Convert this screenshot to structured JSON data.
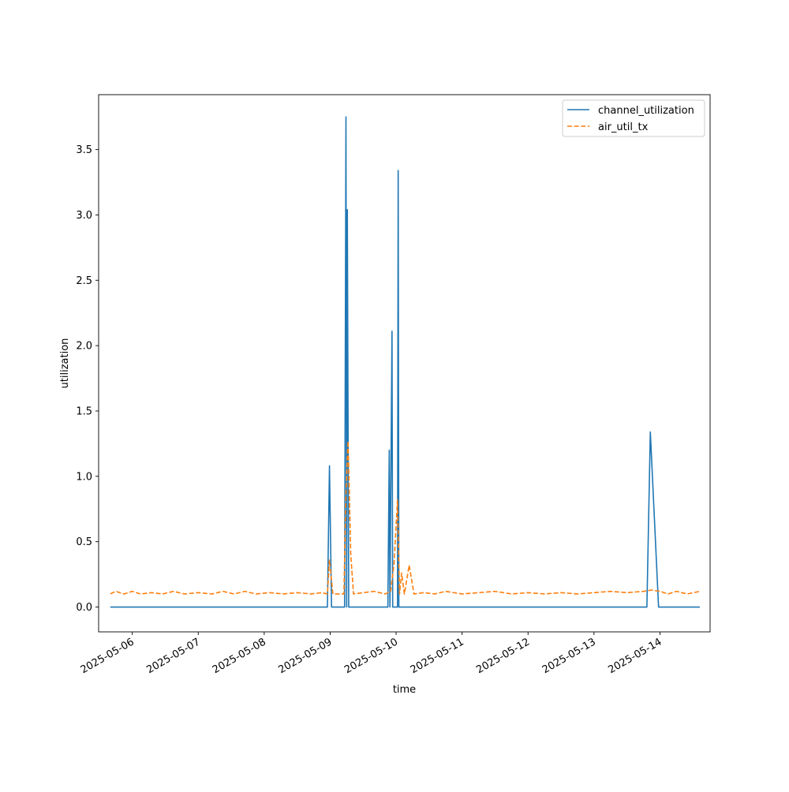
{
  "chart_data": {
    "type": "line",
    "title": "",
    "xlabel": "time",
    "ylabel": "utilization",
    "x_tick_labels": [
      "2025-05-06",
      "2025-05-07",
      "2025-05-08",
      "2025-05-09",
      "2025-05-10",
      "2025-05-11",
      "2025-05-12",
      "2025-05-13",
      "2025-05-14"
    ],
    "y_ticks": [
      0.0,
      0.5,
      1.0,
      1.5,
      2.0,
      2.5,
      3.0,
      3.5
    ],
    "y_tick_labels": [
      "0.0",
      "0.5",
      "1.0",
      "1.5",
      "2.0",
      "2.5",
      "3.0",
      "3.5"
    ],
    "xlim": [
      "2025-05-05T11:45",
      "2025-05-14T18:15"
    ],
    "ylim": [
      -0.19,
      3.92
    ],
    "grid": false,
    "legend_position": "upper right",
    "series": [
      {
        "name": "channel_utilization",
        "color": "#1f77b4",
        "style": "solid",
        "points": [
          [
            "2025-05-05T16:00",
            0.0
          ],
          [
            "2025-05-08T23:00",
            0.0
          ],
          [
            "2025-05-08T23:45",
            1.08
          ],
          [
            "2025-05-09T00:30",
            0.0
          ],
          [
            "2025-05-09T05:15",
            0.0
          ],
          [
            "2025-05-09T05:45",
            3.75
          ],
          [
            "2025-05-09T06:00",
            0.0
          ],
          [
            "2025-05-09T06:15",
            3.04
          ],
          [
            "2025-05-09T06:45",
            0.0
          ],
          [
            "2025-05-09T21:00",
            0.0
          ],
          [
            "2025-05-09T21:30",
            1.2
          ],
          [
            "2025-05-09T21:45",
            0.0
          ],
          [
            "2025-05-09T22:30",
            2.11
          ],
          [
            "2025-05-09T22:45",
            0.0
          ],
          [
            "2025-05-10T00:30",
            0.0
          ],
          [
            "2025-05-10T00:45",
            3.34
          ],
          [
            "2025-05-10T01:00",
            0.0
          ],
          [
            "2025-05-13T19:15",
            0.0
          ],
          [
            "2025-05-13T20:30",
            1.34
          ],
          [
            "2025-05-13T23:30",
            0.0
          ],
          [
            "2025-05-14T14:30",
            0.0
          ]
        ]
      },
      {
        "name": "air_util_tx",
        "color": "#ff7f0e",
        "style": "dashed",
        "points": [
          [
            "2025-05-05T16:00",
            0.1
          ],
          [
            "2025-05-05T18:00",
            0.12
          ],
          [
            "2025-05-05T21:00",
            0.1
          ],
          [
            "2025-05-06T00:00",
            0.12
          ],
          [
            "2025-05-06T03:00",
            0.1
          ],
          [
            "2025-05-06T07:00",
            0.11
          ],
          [
            "2025-05-06T11:00",
            0.1
          ],
          [
            "2025-05-06T15:00",
            0.12
          ],
          [
            "2025-05-06T19:00",
            0.1
          ],
          [
            "2025-05-07T00:00",
            0.11
          ],
          [
            "2025-05-07T05:00",
            0.1
          ],
          [
            "2025-05-07T09:00",
            0.12
          ],
          [
            "2025-05-07T13:00",
            0.1
          ],
          [
            "2025-05-07T17:00",
            0.12
          ],
          [
            "2025-05-07T21:00",
            0.1
          ],
          [
            "2025-05-08T02:00",
            0.11
          ],
          [
            "2025-05-08T07:00",
            0.1
          ],
          [
            "2025-05-08T12:00",
            0.11
          ],
          [
            "2025-05-08T17:00",
            0.1
          ],
          [
            "2025-05-08T21:00",
            0.11
          ],
          [
            "2025-05-08T23:00",
            0.1
          ],
          [
            "2025-05-08T23:45",
            0.36
          ],
          [
            "2025-05-09T01:00",
            0.1
          ],
          [
            "2025-05-09T05:00",
            0.1
          ],
          [
            "2025-05-09T05:45",
            0.88
          ],
          [
            "2025-05-09T06:30",
            1.27
          ],
          [
            "2025-05-09T07:30",
            0.4
          ],
          [
            "2025-05-09T08:30",
            0.1
          ],
          [
            "2025-05-09T12:00",
            0.11
          ],
          [
            "2025-05-09T16:00",
            0.12
          ],
          [
            "2025-05-09T20:00",
            0.1
          ],
          [
            "2025-05-09T22:00",
            0.12
          ],
          [
            "2025-05-09T23:15",
            0.33
          ],
          [
            "2025-05-10T00:30",
            0.82
          ],
          [
            "2025-05-10T01:15",
            0.1
          ],
          [
            "2025-05-10T02:00",
            0.26
          ],
          [
            "2025-05-10T03:00",
            0.1
          ],
          [
            "2025-05-10T04:45",
            0.32
          ],
          [
            "2025-05-10T06:30",
            0.1
          ],
          [
            "2025-05-10T10:00",
            0.11
          ],
          [
            "2025-05-10T14:00",
            0.1
          ],
          [
            "2025-05-10T18:00",
            0.12
          ],
          [
            "2025-05-11T00:00",
            0.1
          ],
          [
            "2025-05-11T06:00",
            0.11
          ],
          [
            "2025-05-11T12:00",
            0.12
          ],
          [
            "2025-05-11T18:00",
            0.1
          ],
          [
            "2025-05-12T00:00",
            0.11
          ],
          [
            "2025-05-12T06:00",
            0.1
          ],
          [
            "2025-05-12T12:00",
            0.11
          ],
          [
            "2025-05-12T18:00",
            0.1
          ],
          [
            "2025-05-13T00:00",
            0.11
          ],
          [
            "2025-05-13T06:00",
            0.12
          ],
          [
            "2025-05-13T12:00",
            0.11
          ],
          [
            "2025-05-13T18:00",
            0.12
          ],
          [
            "2025-05-13T21:00",
            0.13
          ],
          [
            "2025-05-14T00:00",
            0.12
          ],
          [
            "2025-05-14T03:00",
            0.1
          ],
          [
            "2025-05-14T06:00",
            0.12
          ],
          [
            "2025-05-14T10:00",
            0.1
          ],
          [
            "2025-05-14T14:30",
            0.12
          ]
        ]
      }
    ]
  }
}
